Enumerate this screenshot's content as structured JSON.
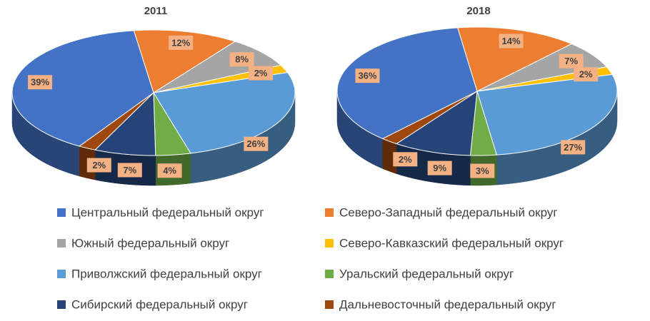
{
  "chart_data": [
    {
      "type": "pie",
      "title": "2011",
      "categories": [
        "Центральный федеральный округ",
        "Северо-Западный федеральный округ",
        "Южный федеральный округ",
        "Северо-Кавказский федеральный округ",
        "Приволжский федеральный округ",
        "Уральский федеральный округ",
        "Сибирский федеральный округ",
        "Дальневосточный федеральный округ"
      ],
      "values": [
        39,
        12,
        8,
        2,
        26,
        4,
        7,
        2
      ],
      "value_labels": [
        "39%",
        "12%",
        "8%",
        "2%",
        "26%",
        "4%",
        "7%",
        "2%"
      ],
      "colors": [
        "#4472c4",
        "#ed7d31",
        "#a5a5a5",
        "#ffc000",
        "#5b9bd5",
        "#70ad47",
        "#264478",
        "#9e480e"
      ]
    },
    {
      "type": "pie",
      "title": "2018",
      "categories": [
        "Центральный федеральный округ",
        "Северо-Западный федеральный округ",
        "Южный федеральный округ",
        "Северо-Кавказский федеральный округ",
        "Приволжский федеральный округ",
        "Уральский федеральный округ",
        "Сибирский федеральный округ",
        "Дальневосточный федеральный округ"
      ],
      "values": [
        36,
        14,
        7,
        2,
        27,
        3,
        9,
        2
      ],
      "value_labels": [
        "36%",
        "14%",
        "7%",
        "2%",
        "27%",
        "3%",
        "9%",
        "2%"
      ],
      "colors": [
        "#4472c4",
        "#ed7d31",
        "#a5a5a5",
        "#ffc000",
        "#5b9bd5",
        "#70ad47",
        "#264478",
        "#9e480e"
      ]
    }
  ]
}
